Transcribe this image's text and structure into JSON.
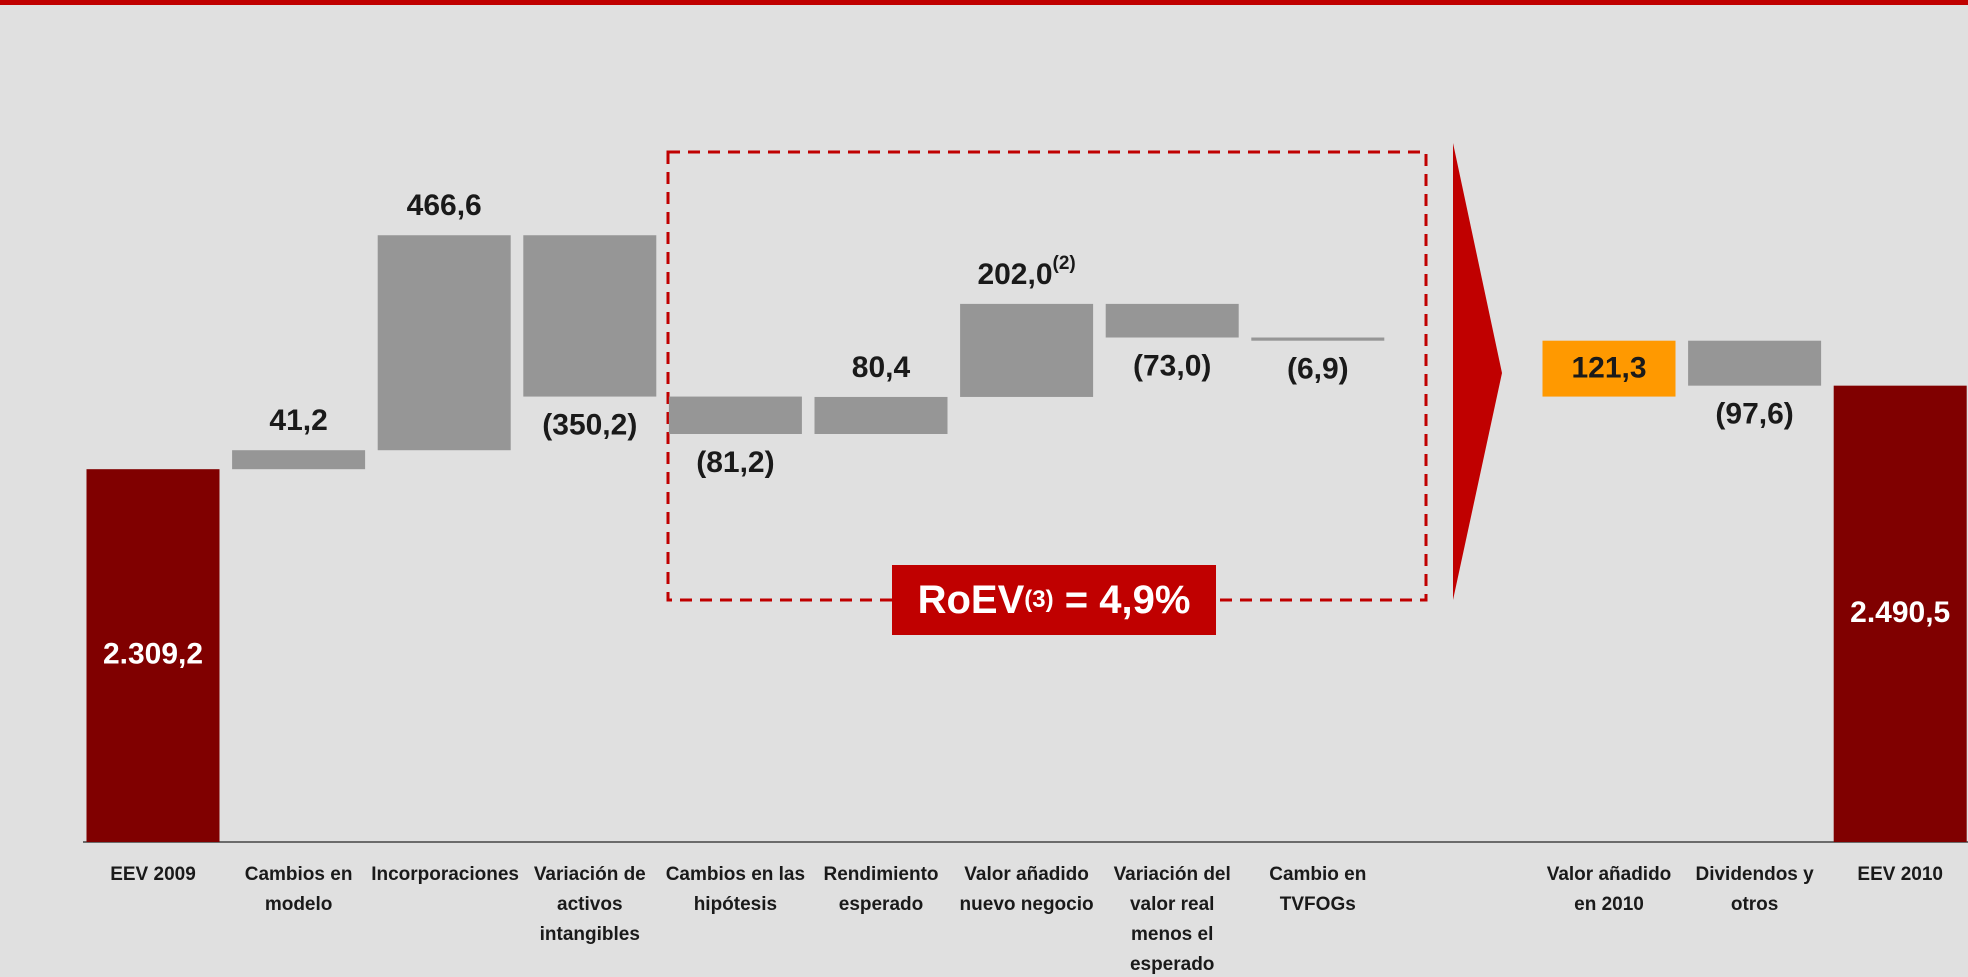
{
  "chart_data": {
    "type": "waterfall",
    "categories": [
      "EEV 2009",
      "Cambios en modelo",
      "Incorporaciones",
      "Variación de activos intangibles",
      "Cambios en las hipótesis",
      "Rendimiento esperado",
      "Valor añadido nuevo negocio",
      "Variación del valor real menos el esperado",
      "Cambio en TVFOGs",
      "Valor añadido en 2010",
      "Dividendos y otros",
      "EEV 2010"
    ],
    "values": [
      2309.2,
      41.2,
      466.6,
      -350.2,
      -81.2,
      80.4,
      202.0,
      -73.0,
      -6.9,
      121.3,
      -97.6,
      2490.5
    ],
    "value_labels": [
      "2.309,2",
      "41,2",
      "466,6",
      "(350,2)",
      "(81,2)",
      "80,4",
      "202,0",
      "(73,0)",
      "(6,9)",
      "121,3",
      "(97,6)",
      "2.490,5"
    ],
    "value_label_notes": [
      null,
      null,
      null,
      null,
      null,
      null,
      "(2)",
      null,
      null,
      null,
      null,
      null
    ],
    "bar_kinds": [
      "total",
      "delta",
      "delta",
      "delta",
      "delta",
      "delta",
      "delta",
      "delta",
      "delta",
      "subtotal",
      "delta",
      "total"
    ],
    "colors": {
      "total": "#800000",
      "delta": "#969696",
      "subtotal": "#ff9900"
    },
    "ylim": [
      1500,
      2900
    ],
    "annotation": {
      "text": "RoEV",
      "sup": "(3)",
      "rest": "= 4,9%"
    }
  }
}
